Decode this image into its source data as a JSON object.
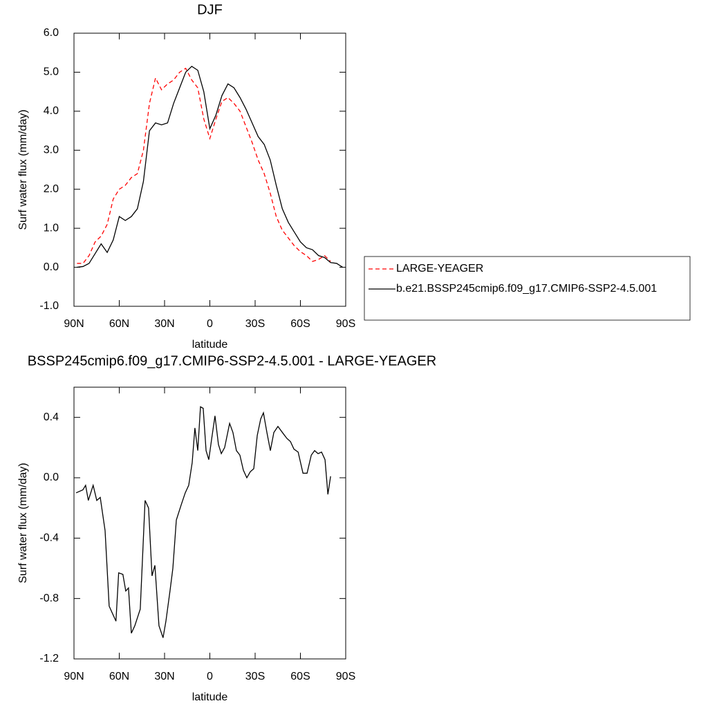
{
  "chart_data": [
    {
      "type": "line",
      "title": "DJF",
      "xlabel": "latitude",
      "ylabel": "Surf water flux (mm/day)",
      "x": [
        88,
        84,
        80,
        76,
        72,
        68,
        64,
        60,
        56,
        52,
        48,
        44,
        40,
        36,
        32,
        28,
        24,
        20,
        16,
        12,
        8,
        4,
        0,
        -4,
        -8,
        -12,
        -16,
        -20,
        -24,
        -28,
        -32,
        -36,
        -40,
        -44,
        -48,
        -52,
        -56,
        -60,
        -64,
        -68,
        -72,
        -76,
        -80,
        -84,
        -88
      ],
      "series": [
        {
          "name": "LARGE-YEAGER",
          "color": "#ff0000",
          "line_style": "dashed",
          "values": [
            0.1,
            0.1,
            0.3,
            0.65,
            0.8,
            1.1,
            1.75,
            2.0,
            2.1,
            2.3,
            2.4,
            3.0,
            4.2,
            4.85,
            4.55,
            4.7,
            4.8,
            5.0,
            5.1,
            4.8,
            4.6,
            3.8,
            3.3,
            3.8,
            4.25,
            4.35,
            4.2,
            4.0,
            3.6,
            3.2,
            2.75,
            2.4,
            1.9,
            1.3,
            0.95,
            0.75,
            0.55,
            0.4,
            0.3,
            0.15,
            0.2,
            0.3,
            0.15,
            null,
            null
          ]
        },
        {
          "name": "b.e21.BSSP245cmip6.f09_g17.CMIP6-SSP2-4.5.001",
          "color": "#000000",
          "line_style": "solid",
          "values": [
            0.0,
            0.02,
            0.1,
            0.35,
            0.6,
            0.38,
            0.7,
            1.3,
            1.2,
            1.3,
            1.5,
            2.2,
            3.5,
            3.7,
            3.65,
            3.7,
            4.2,
            4.6,
            5.0,
            5.15,
            5.05,
            4.5,
            3.55,
            3.9,
            4.4,
            4.7,
            4.6,
            4.35,
            4.05,
            3.7,
            3.35,
            3.15,
            2.75,
            2.1,
            1.5,
            1.15,
            0.9,
            0.65,
            0.5,
            0.45,
            0.3,
            0.25,
            0.12,
            0.1,
            0.0
          ]
        }
      ],
      "xlim": [
        90,
        -90
      ],
      "xticks": [
        {
          "value": 90,
          "label": "90N"
        },
        {
          "value": 60,
          "label": "60N"
        },
        {
          "value": 30,
          "label": "30N"
        },
        0,
        {
          "value": -30,
          "label": "30S"
        },
        {
          "value": -60,
          "label": "60S"
        },
        {
          "value": -90,
          "label": "90S"
        }
      ],
      "ylim": [
        -1,
        6
      ],
      "yticks": [
        {
          "value": -1,
          "label": "-1.0"
        },
        {
          "value": 0,
          "label": "0.0"
        },
        {
          "value": 1,
          "label": "1.0"
        },
        {
          "value": 2,
          "label": "2.0"
        },
        {
          "value": 3,
          "label": "3.0"
        },
        {
          "value": 4,
          "label": "4.0"
        },
        {
          "value": 5,
          "label": "5.0"
        },
        {
          "value": 6,
          "label": "6.0"
        }
      ],
      "legend": "right"
    },
    {
      "type": "line",
      "title": "BSSP245cmip6.f09_g17.CMIP6-SSP2-4.5.001 - LARGE-YEAGER",
      "xlabel": "latitude",
      "ylabel": "Surf water flux (mm/day)",
      "x": [
        88.6,
        84.1,
        82.3,
        80.5,
        77.3,
        74.9,
        72.6,
        69.4,
        66.7,
        62.2,
        60.4,
        57.6,
        55.7,
        53.9,
        52.0,
        49.7,
        46.1,
        42.9,
        40.6,
        38.3,
        36.4,
        33.7,
        31.0,
        29.1,
        26.4,
        24.5,
        22.2,
        19.0,
        16.3,
        14.0,
        11.7,
        9.9,
        8.0,
        6.2,
        4.4,
        2.5,
        0.7,
        -1.1,
        -3.4,
        -5.7,
        -7.6,
        -9.8,
        -13.1,
        -15.3,
        -17.6,
        -19.9,
        -22.2,
        -24.5,
        -26.8,
        -29.1,
        -31.4,
        -33.7,
        -35.5,
        -37.8,
        -40.1,
        -42.4,
        -45.1,
        -48.8,
        -51.1,
        -53.4,
        -55.7,
        -58.5,
        -61.7,
        -64.4,
        -67.2,
        -69.4,
        -71.7,
        -74.0,
        -76.3,
        -78.2,
        -80.0
      ],
      "values": [
        -0.1,
        -0.08,
        -0.05,
        -0.15,
        -0.05,
        -0.15,
        -0.13,
        -0.35,
        -0.85,
        -0.95,
        -0.63,
        -0.64,
        -0.75,
        -0.73,
        -1.03,
        -0.98,
        -0.87,
        -0.15,
        -0.2,
        -0.65,
        -0.58,
        -0.98,
        -1.06,
        -0.95,
        -0.75,
        -0.6,
        -0.28,
        -0.18,
        -0.1,
        -0.05,
        0.1,
        0.33,
        0.18,
        0.47,
        0.46,
        0.18,
        0.12,
        0.25,
        0.41,
        0.22,
        0.16,
        0.2,
        0.36,
        0.3,
        0.18,
        0.15,
        0.05,
        0.0,
        0.04,
        0.06,
        0.28,
        0.39,
        0.43,
        0.3,
        0.18,
        0.3,
        0.34,
        0.29,
        0.26,
        0.24,
        0.19,
        0.17,
        0.03,
        0.03,
        0.15,
        0.18,
        0.16,
        0.17,
        0.12,
        -0.11,
        0.01
      ],
      "color": "#000000",
      "xlim": [
        90,
        -90
      ],
      "xticks": [
        {
          "value": 90,
          "label": "90N"
        },
        {
          "value": 60,
          "label": "60N"
        },
        {
          "value": 30,
          "label": "30N"
        },
        0,
        {
          "value": -30,
          "label": "30S"
        },
        {
          "value": -60,
          "label": "60S"
        },
        {
          "value": -90,
          "label": "90S"
        }
      ],
      "ylim": [
        -1.2,
        0.6
      ],
      "yticks": [
        -1.2,
        -0.8,
        -0.4,
        {
          "value": 0,
          "label": "0.0"
        },
        0.4
      ]
    }
  ]
}
